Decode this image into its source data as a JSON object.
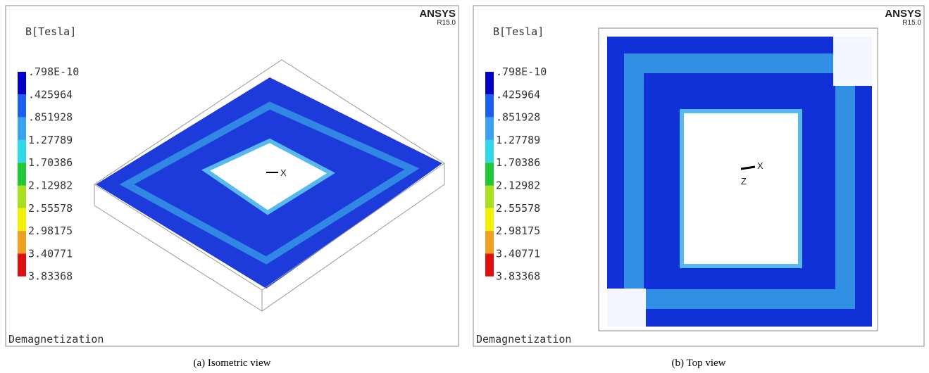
{
  "panels": [
    {
      "brand": "ANSYS",
      "version": "R15.0",
      "quantity": "B[Tesla]",
      "legend": [
        ".798E-10",
        ".425964",
        ".851928",
        "1.27789",
        "1.70386",
        "2.12982",
        "2.55578",
        "2.98175",
        "3.40771",
        "3.83368"
      ],
      "axes": [
        "X"
      ],
      "footer": "Demagnetization",
      "caption": "(a) Isometric view"
    },
    {
      "brand": "ANSYS",
      "version": "R15.0",
      "quantity": "B[Tesla]",
      "legend": [
        ".798E-10",
        ".425964",
        ".851928",
        "1.27789",
        "1.70386",
        "2.12982",
        "2.55578",
        "2.98175",
        "3.40771",
        "3.83368"
      ],
      "axes": [
        "X",
        "Z"
      ],
      "footer": "Demagnetization",
      "caption": "(b) Top view"
    }
  ]
}
